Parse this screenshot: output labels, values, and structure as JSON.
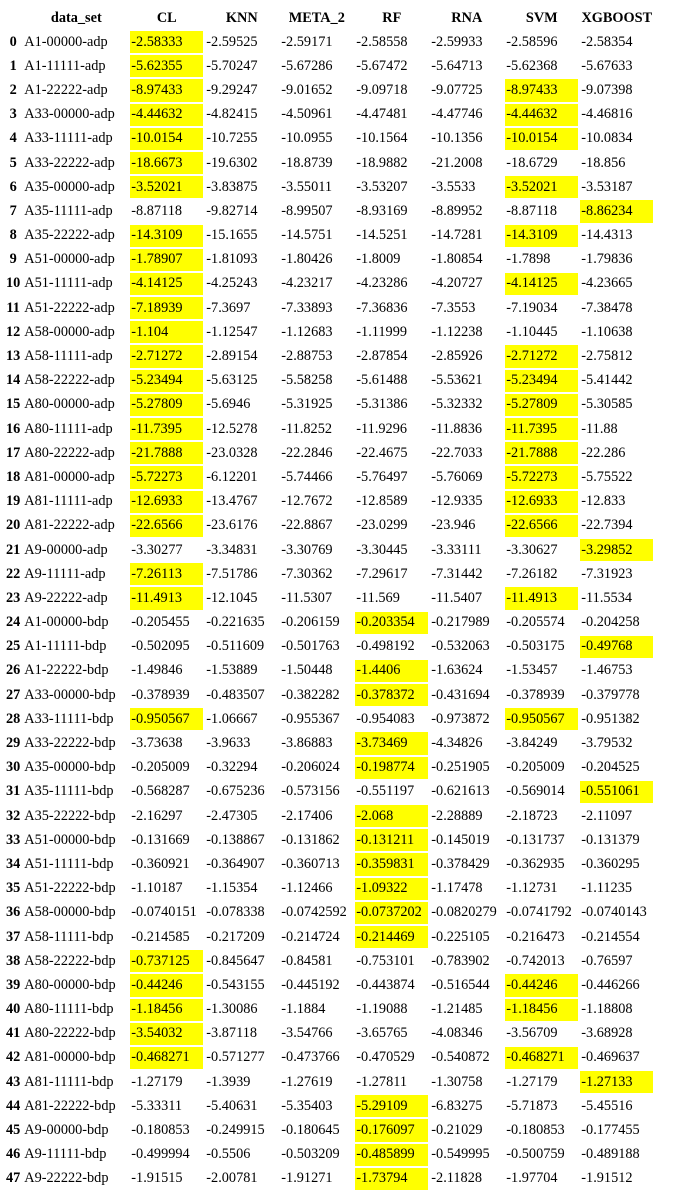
{
  "highlight_color": "#FFFF00",
  "table": {
    "columns": [
      "",
      "data_set",
      "CL",
      "KNN",
      "META_2",
      "RF",
      "RNA",
      "SVM",
      "XGBOOST"
    ],
    "rows": [
      {
        "index": "0",
        "data_set": "A1-00000-adp",
        "values": [
          "-2.58333",
          "-2.59525",
          "-2.59171",
          "-2.58558",
          "-2.59933",
          "-2.58596",
          "-2.58354"
        ],
        "highlight": [
          0
        ]
      },
      {
        "index": "1",
        "data_set": "A1-11111-adp",
        "values": [
          "-5.62355",
          "-5.70247",
          "-5.67286",
          "-5.67472",
          "-5.64713",
          "-5.62368",
          "-5.67633"
        ],
        "highlight": [
          0
        ]
      },
      {
        "index": "2",
        "data_set": "A1-22222-adp",
        "values": [
          "-8.97433",
          "-9.29247",
          "-9.01652",
          "-9.09718",
          "-9.07725",
          "-8.97433",
          "-9.07398"
        ],
        "highlight": [
          0,
          5
        ]
      },
      {
        "index": "3",
        "data_set": "A33-00000-adp",
        "values": [
          "-4.44632",
          "-4.82415",
          "-4.50961",
          "-4.47481",
          "-4.47746",
          "-4.44632",
          "-4.46816"
        ],
        "highlight": [
          0,
          5
        ]
      },
      {
        "index": "4",
        "data_set": "A33-11111-adp",
        "values": [
          "-10.0154",
          "-10.7255",
          "-10.0955",
          "-10.1564",
          "-10.1356",
          "-10.0154",
          "-10.0834"
        ],
        "highlight": [
          0,
          5
        ]
      },
      {
        "index": "5",
        "data_set": "A33-22222-adp",
        "values": [
          "-18.6673",
          "-19.6302",
          "-18.8739",
          "-18.9882",
          "-21.2008",
          "-18.6729",
          "-18.856"
        ],
        "highlight": [
          0
        ]
      },
      {
        "index": "6",
        "data_set": "A35-00000-adp",
        "values": [
          "-3.52021",
          "-3.83875",
          "-3.55011",
          "-3.53207",
          "-3.5533",
          "-3.52021",
          "-3.53187"
        ],
        "highlight": [
          0,
          5
        ]
      },
      {
        "index": "7",
        "data_set": "A35-11111-adp",
        "values": [
          "-8.87118",
          "-9.82714",
          "-8.99507",
          "-8.93169",
          "-8.89952",
          "-8.87118",
          "-8.86234"
        ],
        "highlight": [
          6
        ]
      },
      {
        "index": "8",
        "data_set": "A35-22222-adp",
        "values": [
          "-14.3109",
          "-15.1655",
          "-14.5751",
          "-14.5251",
          "-14.7281",
          "-14.3109",
          "-14.4313"
        ],
        "highlight": [
          0,
          5
        ]
      },
      {
        "index": "9",
        "data_set": "A51-00000-adp",
        "values": [
          "-1.78907",
          "-1.81093",
          "-1.80426",
          "-1.8009",
          "-1.80854",
          "-1.7898",
          "-1.79836"
        ],
        "highlight": [
          0
        ]
      },
      {
        "index": "10",
        "data_set": "A51-11111-adp",
        "values": [
          "-4.14125",
          "-4.25243",
          "-4.23217",
          "-4.23286",
          "-4.20727",
          "-4.14125",
          "-4.23665"
        ],
        "highlight": [
          0,
          5
        ]
      },
      {
        "index": "11",
        "data_set": "A51-22222-adp",
        "values": [
          "-7.18939",
          "-7.3697",
          "-7.33893",
          "-7.36836",
          "-7.3553",
          "-7.19034",
          "-7.38478"
        ],
        "highlight": [
          0
        ]
      },
      {
        "index": "12",
        "data_set": "A58-00000-adp",
        "values": [
          "-1.104",
          "-1.12547",
          "-1.12683",
          "-1.11999",
          "-1.12238",
          "-1.10445",
          "-1.10638"
        ],
        "highlight": [
          0
        ]
      },
      {
        "index": "13",
        "data_set": "A58-11111-adp",
        "values": [
          "-2.71272",
          "-2.89154",
          "-2.88753",
          "-2.87854",
          "-2.85926",
          "-2.71272",
          "-2.75812"
        ],
        "highlight": [
          0,
          5
        ]
      },
      {
        "index": "14",
        "data_set": "A58-22222-adp",
        "values": [
          "-5.23494",
          "-5.63125",
          "-5.58258",
          "-5.61488",
          "-5.53621",
          "-5.23494",
          "-5.41442"
        ],
        "highlight": [
          0,
          5
        ]
      },
      {
        "index": "15",
        "data_set": "A80-00000-adp",
        "values": [
          "-5.27809",
          "-5.6946",
          "-5.31925",
          "-5.31386",
          "-5.32332",
          "-5.27809",
          "-5.30585"
        ],
        "highlight": [
          0,
          5
        ]
      },
      {
        "index": "16",
        "data_set": "A80-11111-adp",
        "values": [
          "-11.7395",
          "-12.5278",
          "-11.8252",
          "-11.9296",
          "-11.8836",
          "-11.7395",
          "-11.88"
        ],
        "highlight": [
          0,
          5
        ]
      },
      {
        "index": "17",
        "data_set": "A80-22222-adp",
        "values": [
          "-21.7888",
          "-23.0328",
          "-22.2846",
          "-22.4675",
          "-22.7033",
          "-21.7888",
          "-22.286"
        ],
        "highlight": [
          0,
          5
        ]
      },
      {
        "index": "18",
        "data_set": "A81-00000-adp",
        "values": [
          "-5.72273",
          "-6.12201",
          "-5.74466",
          "-5.76497",
          "-5.76069",
          "-5.72273",
          "-5.75522"
        ],
        "highlight": [
          0,
          5
        ]
      },
      {
        "index": "19",
        "data_set": "A81-11111-adp",
        "values": [
          "-12.6933",
          "-13.4767",
          "-12.7672",
          "-12.8589",
          "-12.9335",
          "-12.6933",
          "-12.833"
        ],
        "highlight": [
          0,
          5
        ]
      },
      {
        "index": "20",
        "data_set": "A81-22222-adp",
        "values": [
          "-22.6566",
          "-23.6176",
          "-22.8867",
          "-23.0299",
          "-23.946",
          "-22.6566",
          "-22.7394"
        ],
        "highlight": [
          0,
          5
        ]
      },
      {
        "index": "21",
        "data_set": "A9-00000-adp",
        "values": [
          "-3.30277",
          "-3.34831",
          "-3.30769",
          "-3.30445",
          "-3.33111",
          "-3.30627",
          "-3.29852"
        ],
        "highlight": [
          6
        ]
      },
      {
        "index": "22",
        "data_set": "A9-11111-adp",
        "values": [
          "-7.26113",
          "-7.51786",
          "-7.30362",
          "-7.29617",
          "-7.31442",
          "-7.26182",
          "-7.31923"
        ],
        "highlight": [
          0
        ]
      },
      {
        "index": "23",
        "data_set": "A9-22222-adp",
        "values": [
          "-11.4913",
          "-12.1045",
          "-11.5307",
          "-11.569",
          "-11.5407",
          "-11.4913",
          "-11.5534"
        ],
        "highlight": [
          0,
          5
        ]
      },
      {
        "index": "24",
        "data_set": "A1-00000-bdp",
        "values": [
          "-0.205455",
          "-0.221635",
          "-0.206159",
          "-0.203354",
          "-0.217989",
          "-0.205574",
          "-0.204258"
        ],
        "highlight": [
          3
        ]
      },
      {
        "index": "25",
        "data_set": "A1-11111-bdp",
        "values": [
          "-0.502095",
          "-0.511609",
          "-0.501763",
          "-0.498192",
          "-0.532063",
          "-0.503175",
          "-0.49768"
        ],
        "highlight": [
          6
        ]
      },
      {
        "index": "26",
        "data_set": "A1-22222-bdp",
        "values": [
          "-1.49846",
          "-1.53889",
          "-1.50448",
          "-1.4406",
          "-1.63624",
          "-1.53457",
          "-1.46753"
        ],
        "highlight": [
          3
        ]
      },
      {
        "index": "27",
        "data_set": "A33-00000-bdp",
        "values": [
          "-0.378939",
          "-0.483507",
          "-0.382282",
          "-0.378372",
          "-0.431694",
          "-0.378939",
          "-0.379778"
        ],
        "highlight": [
          3
        ]
      },
      {
        "index": "28",
        "data_set": "A33-11111-bdp",
        "values": [
          "-0.950567",
          "-1.06667",
          "-0.955367",
          "-0.954083",
          "-0.973872",
          "-0.950567",
          "-0.951382"
        ],
        "highlight": [
          0,
          5
        ]
      },
      {
        "index": "29",
        "data_set": "A33-22222-bdp",
        "values": [
          "-3.73638",
          "-3.9633",
          "-3.86883",
          "-3.73469",
          "-4.34826",
          "-3.84249",
          "-3.79532"
        ],
        "highlight": [
          3
        ]
      },
      {
        "index": "30",
        "data_set": "A35-00000-bdp",
        "values": [
          "-0.205009",
          "-0.32294",
          "-0.206024",
          "-0.198774",
          "-0.251905",
          "-0.205009",
          "-0.204525"
        ],
        "highlight": [
          3
        ]
      },
      {
        "index": "31",
        "data_set": "A35-11111-bdp",
        "values": [
          "-0.568287",
          "-0.675236",
          "-0.573156",
          "-0.551197",
          "-0.621613",
          "-0.569014",
          "-0.551061"
        ],
        "highlight": [
          6
        ]
      },
      {
        "index": "32",
        "data_set": "A35-22222-bdp",
        "values": [
          "-2.16297",
          "-2.47305",
          "-2.17406",
          "-2.068",
          "-2.28889",
          "-2.18723",
          "-2.11097"
        ],
        "highlight": [
          3
        ]
      },
      {
        "index": "33",
        "data_set": "A51-00000-bdp",
        "values": [
          "-0.131669",
          "-0.138867",
          "-0.131862",
          "-0.131211",
          "-0.145019",
          "-0.131737",
          "-0.131379"
        ],
        "highlight": [
          3
        ]
      },
      {
        "index": "34",
        "data_set": "A51-11111-bdp",
        "values": [
          "-0.360921",
          "-0.364907",
          "-0.360713",
          "-0.359831",
          "-0.378429",
          "-0.362935",
          "-0.360295"
        ],
        "highlight": [
          3
        ]
      },
      {
        "index": "35",
        "data_set": "A51-22222-bdp",
        "values": [
          "-1.10187",
          "-1.15354",
          "-1.12466",
          "-1.09322",
          "-1.17478",
          "-1.12731",
          "-1.11235"
        ],
        "highlight": [
          3
        ]
      },
      {
        "index": "36",
        "data_set": "A58-00000-bdp",
        "values": [
          "-0.0740151",
          "-0.078338",
          "-0.0742592",
          "-0.0737202",
          "-0.0820279",
          "-0.0741792",
          "-0.0740143"
        ],
        "highlight": [
          3
        ]
      },
      {
        "index": "37",
        "data_set": "A58-11111-bdp",
        "values": [
          "-0.214585",
          "-0.217209",
          "-0.214724",
          "-0.214469",
          "-0.225105",
          "-0.216473",
          "-0.214554"
        ],
        "highlight": [
          3
        ]
      },
      {
        "index": "38",
        "data_set": "A58-22222-bdp",
        "values": [
          "-0.737125",
          "-0.845647",
          "-0.84581",
          "-0.753101",
          "-0.783902",
          "-0.742013",
          "-0.76597"
        ],
        "highlight": [
          0
        ]
      },
      {
        "index": "39",
        "data_set": "A80-00000-bdp",
        "values": [
          "-0.44246",
          "-0.543155",
          "-0.445192",
          "-0.443874",
          "-0.516544",
          "-0.44246",
          "-0.446266"
        ],
        "highlight": [
          0,
          5
        ]
      },
      {
        "index": "40",
        "data_set": "A80-11111-bdp",
        "values": [
          "-1.18456",
          "-1.30086",
          "-1.1884",
          "-1.19088",
          "-1.21485",
          "-1.18456",
          "-1.18808"
        ],
        "highlight": [
          0,
          5
        ]
      },
      {
        "index": "41",
        "data_set": "A80-22222-bdp",
        "values": [
          "-3.54032",
          "-3.87118",
          "-3.54766",
          "-3.65765",
          "-4.08346",
          "-3.56709",
          "-3.68928"
        ],
        "highlight": [
          0
        ]
      },
      {
        "index": "42",
        "data_set": "A81-00000-bdp",
        "values": [
          "-0.468271",
          "-0.571277",
          "-0.473766",
          "-0.470529",
          "-0.540872",
          "-0.468271",
          "-0.469637"
        ],
        "highlight": [
          0,
          5
        ]
      },
      {
        "index": "43",
        "data_set": "A81-11111-bdp",
        "values": [
          "-1.27179",
          "-1.3939",
          "-1.27619",
          "-1.27811",
          "-1.30758",
          "-1.27179",
          "-1.27133"
        ],
        "highlight": [
          6
        ]
      },
      {
        "index": "44",
        "data_set": "A81-22222-bdp",
        "values": [
          "-5.33311",
          "-5.40631",
          "-5.35403",
          "-5.29109",
          "-6.83275",
          "-5.71873",
          "-5.45516"
        ],
        "highlight": [
          3
        ]
      },
      {
        "index": "45",
        "data_set": "A9-00000-bdp",
        "values": [
          "-0.180853",
          "-0.249915",
          "-0.180645",
          "-0.176097",
          "-0.21029",
          "-0.180853",
          "-0.177455"
        ],
        "highlight": [
          3
        ]
      },
      {
        "index": "46",
        "data_set": "A9-11111-bdp",
        "values": [
          "-0.499994",
          "-0.5506",
          "-0.503209",
          "-0.485899",
          "-0.549995",
          "-0.500759",
          "-0.489188"
        ],
        "highlight": [
          3
        ]
      },
      {
        "index": "47",
        "data_set": "A9-22222-bdp",
        "values": [
          "-1.91515",
          "-2.00781",
          "-1.91271",
          "-1.73794",
          "-2.11828",
          "-1.97704",
          "-1.91512"
        ],
        "highlight": [
          3
        ]
      }
    ]
  }
}
